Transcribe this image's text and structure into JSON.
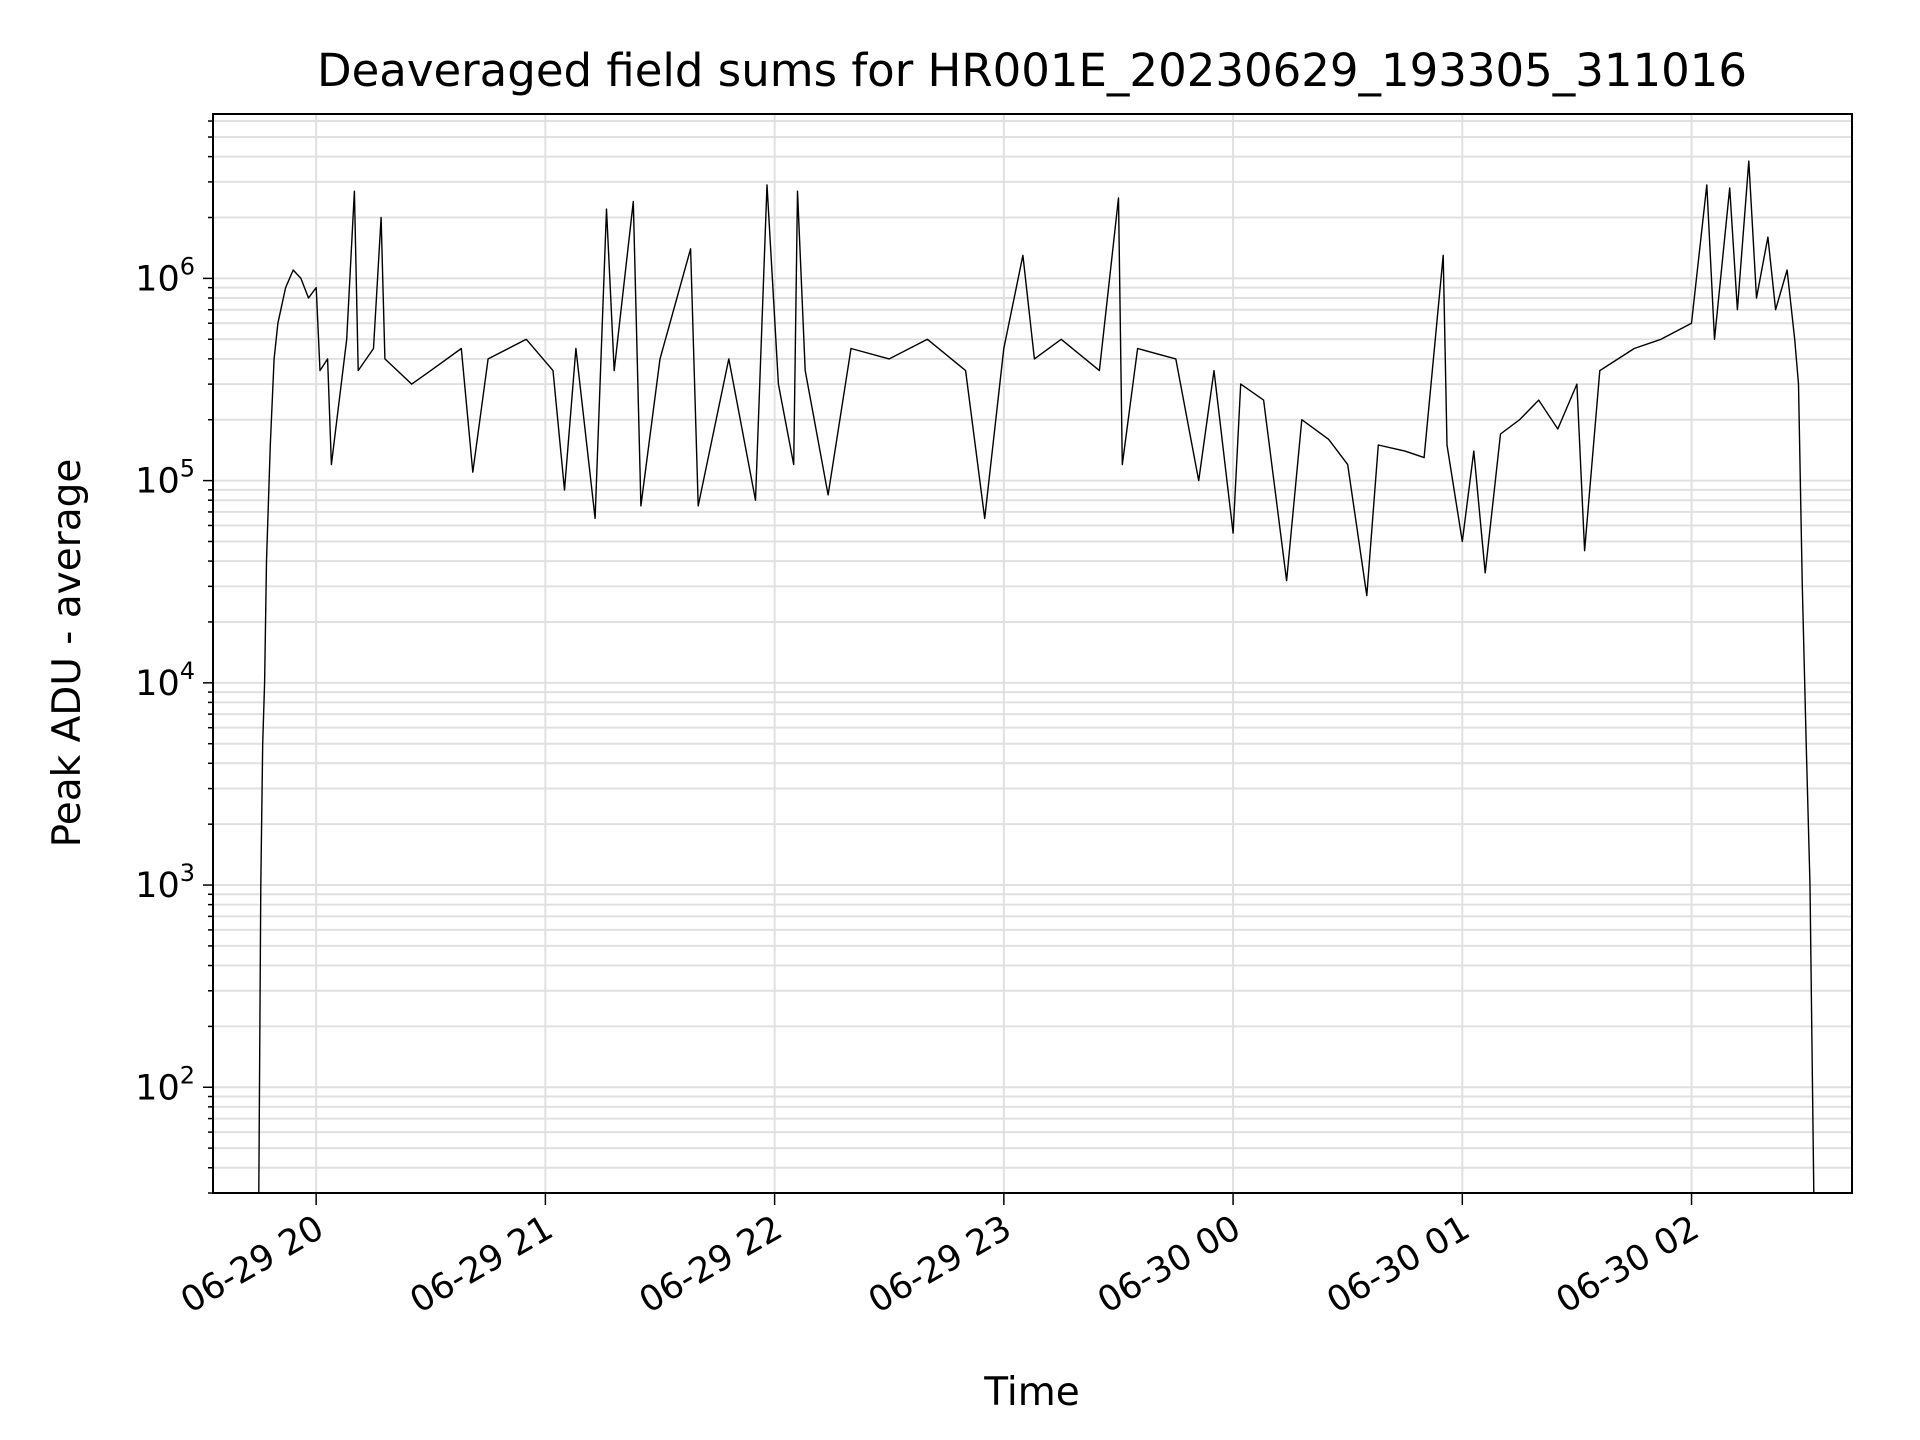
{
  "chart_data": {
    "type": "line",
    "title": "Deaveraged field sums for HR001E_20230629_193305_311016",
    "xlabel": "Time",
    "ylabel": "Peak ADU - average",
    "yscale": "log",
    "ylim": [
      30,
      6500000
    ],
    "xlim": [
      "2023-06-29T19:33",
      "2023-06-30T02:42"
    ],
    "grid": true,
    "x_ticks": [
      {
        "t": "2023-06-29T20:00",
        "label": "06-29 20"
      },
      {
        "t": "2023-06-29T21:00",
        "label": "06-29 21"
      },
      {
        "t": "2023-06-29T22:00",
        "label": "06-29 22"
      },
      {
        "t": "2023-06-29T23:00",
        "label": "06-29 23"
      },
      {
        "t": "2023-06-30T00:00",
        "label": "06-30 00"
      },
      {
        "t": "2023-06-30T01:00",
        "label": "06-30 01"
      },
      {
        "t": "2023-06-30T02:00",
        "label": "06-30 02"
      }
    ],
    "y_ticks": [
      {
        "v": 100,
        "base": "10",
        "exp": "2"
      },
      {
        "v": 1000,
        "base": "10",
        "exp": "3"
      },
      {
        "v": 10000,
        "base": "10",
        "exp": "4"
      },
      {
        "v": 100000,
        "base": "10",
        "exp": "5"
      },
      {
        "v": 1000000,
        "base": "10",
        "exp": "6"
      }
    ],
    "series": [
      {
        "color": "#000000",
        "points": [
          [
            "2023-06-29T19:45",
            30
          ],
          [
            "2023-06-29T19:45:30",
            1000
          ],
          [
            "2023-06-29T19:46",
            5000
          ],
          [
            "2023-06-29T19:46:30",
            10000
          ],
          [
            "2023-06-29T19:47",
            40000
          ],
          [
            "2023-06-29T19:48",
            150000
          ],
          [
            "2023-06-29T19:49",
            400000
          ],
          [
            "2023-06-29T19:50",
            600000
          ],
          [
            "2023-06-29T19:52",
            900000
          ],
          [
            "2023-06-29T19:54",
            1100000
          ],
          [
            "2023-06-29T19:56",
            1000000
          ],
          [
            "2023-06-29T19:58",
            800000
          ],
          [
            "2023-06-29T20:00",
            900000
          ],
          [
            "2023-06-29T20:01",
            350000
          ],
          [
            "2023-06-29T20:03",
            400000
          ],
          [
            "2023-06-29T20:04",
            120000
          ],
          [
            "2023-06-29T20:08",
            500000
          ],
          [
            "2023-06-29T20:10",
            2700000
          ],
          [
            "2023-06-29T20:11",
            350000
          ],
          [
            "2023-06-29T20:15",
            450000
          ],
          [
            "2023-06-29T20:17",
            2000000
          ],
          [
            "2023-06-29T20:18",
            400000
          ],
          [
            "2023-06-29T20:25",
            300000
          ],
          [
            "2023-06-29T20:30",
            350000
          ],
          [
            "2023-06-29T20:38",
            450000
          ],
          [
            "2023-06-29T20:41",
            110000
          ],
          [
            "2023-06-29T20:45",
            400000
          ],
          [
            "2023-06-29T20:55",
            500000
          ],
          [
            "2023-06-29T21:02",
            350000
          ],
          [
            "2023-06-29T21:05",
            90000
          ],
          [
            "2023-06-29T21:08",
            450000
          ],
          [
            "2023-06-29T21:13",
            65000
          ],
          [
            "2023-06-29T21:16",
            2200000
          ],
          [
            "2023-06-29T21:18",
            350000
          ],
          [
            "2023-06-29T21:23",
            2400000
          ],
          [
            "2023-06-29T21:25",
            75000
          ],
          [
            "2023-06-29T21:30",
            400000
          ],
          [
            "2023-06-29T21:38",
            1400000
          ],
          [
            "2023-06-29T21:40",
            75000
          ],
          [
            "2023-06-29T21:48",
            400000
          ],
          [
            "2023-06-29T21:55",
            80000
          ],
          [
            "2023-06-29T21:58",
            2900000
          ],
          [
            "2023-06-29T22:01",
            300000
          ],
          [
            "2023-06-29T22:05",
            120000
          ],
          [
            "2023-06-29T22:06",
            2700000
          ],
          [
            "2023-06-29T22:08",
            350000
          ],
          [
            "2023-06-29T22:14",
            85000
          ],
          [
            "2023-06-29T22:20",
            450000
          ],
          [
            "2023-06-29T22:30",
            400000
          ],
          [
            "2023-06-29T22:40",
            500000
          ],
          [
            "2023-06-29T22:50",
            350000
          ],
          [
            "2023-06-29T22:55",
            65000
          ],
          [
            "2023-06-29T23:00",
            450000
          ],
          [
            "2023-06-29T23:05",
            1300000
          ],
          [
            "2023-06-29T23:08",
            400000
          ],
          [
            "2023-06-29T23:15",
            500000
          ],
          [
            "2023-06-29T23:25",
            350000
          ],
          [
            "2023-06-29T23:30",
            2500000
          ],
          [
            "2023-06-29T23:31",
            120000
          ],
          [
            "2023-06-29T23:35",
            450000
          ],
          [
            "2023-06-29T23:45",
            400000
          ],
          [
            "2023-06-29T23:51",
            100000
          ],
          [
            "2023-06-29T23:55",
            350000
          ],
          [
            "2023-06-30T00:00",
            55000
          ],
          [
            "2023-06-30T00:02",
            300000
          ],
          [
            "2023-06-30T00:08",
            250000
          ],
          [
            "2023-06-30T00:14",
            32000
          ],
          [
            "2023-06-30T00:18",
            200000
          ],
          [
            "2023-06-30T00:25",
            160000
          ],
          [
            "2023-06-30T00:30",
            120000
          ],
          [
            "2023-06-30T00:35",
            27000
          ],
          [
            "2023-06-30T00:38",
            150000
          ],
          [
            "2023-06-30T00:45",
            140000
          ],
          [
            "2023-06-30T00:50",
            130000
          ],
          [
            "2023-06-30T00:55",
            1300000
          ],
          [
            "2023-06-30T00:56",
            150000
          ],
          [
            "2023-06-30T01:00",
            50000
          ],
          [
            "2023-06-30T01:03",
            140000
          ],
          [
            "2023-06-30T01:06",
            35000
          ],
          [
            "2023-06-30T01:10",
            170000
          ],
          [
            "2023-06-30T01:15",
            200000
          ],
          [
            "2023-06-30T01:20",
            250000
          ],
          [
            "2023-06-30T01:25",
            180000
          ],
          [
            "2023-06-30T01:30",
            300000
          ],
          [
            "2023-06-30T01:32",
            45000
          ],
          [
            "2023-06-30T01:36",
            350000
          ],
          [
            "2023-06-30T01:45",
            450000
          ],
          [
            "2023-06-30T01:52",
            500000
          ],
          [
            "2023-06-30T02:00",
            600000
          ],
          [
            "2023-06-30T02:04",
            2900000
          ],
          [
            "2023-06-30T02:06",
            500000
          ],
          [
            "2023-06-30T02:10",
            2800000
          ],
          [
            "2023-06-30T02:12",
            700000
          ],
          [
            "2023-06-30T02:15",
            3800000
          ],
          [
            "2023-06-30T02:17",
            800000
          ],
          [
            "2023-06-30T02:20",
            1600000
          ],
          [
            "2023-06-30T02:22",
            700000
          ],
          [
            "2023-06-30T02:25",
            1100000
          ],
          [
            "2023-06-30T02:27",
            500000
          ],
          [
            "2023-06-30T02:28",
            300000
          ],
          [
            "2023-06-30T02:29",
            30000
          ],
          [
            "2023-06-30T02:30",
            5000
          ],
          [
            "2023-06-30T02:31",
            1000
          ],
          [
            "2023-06-30T02:32",
            30
          ]
        ]
      }
    ]
  }
}
